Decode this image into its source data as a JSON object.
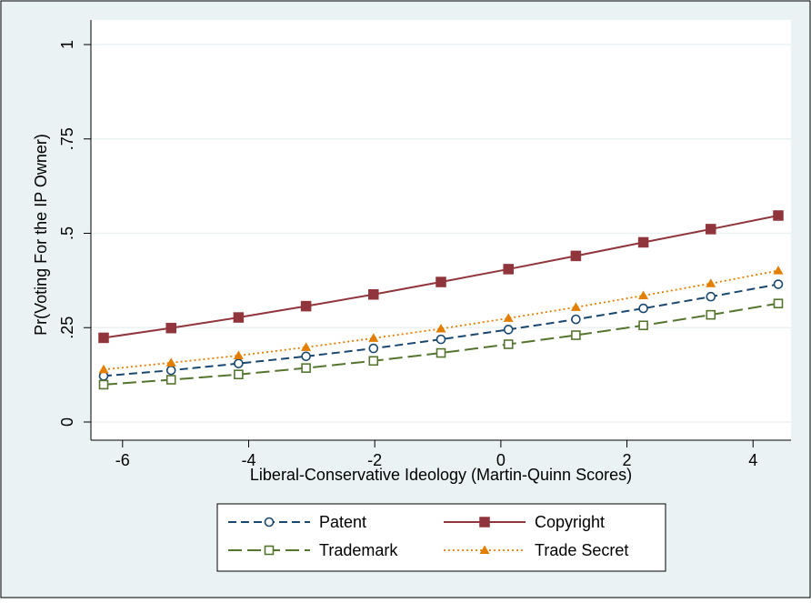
{
  "chart_data": {
    "type": "line",
    "title": "",
    "xlabel": "Liberal-Conservative Ideology (Martin-Quinn Scores)",
    "ylabel": "Pr(Voting For the IP Owner)",
    "xlim": [
      -6.3,
      4.4
    ],
    "ylim": [
      0,
      1
    ],
    "x_ticks": [
      -6,
      -4,
      -2,
      0,
      2,
      4
    ],
    "x_tick_labels": [
      "-6",
      "-4",
      "-2",
      "0",
      "2",
      "4"
    ],
    "y_ticks": [
      0,
      0.25,
      0.5,
      0.75,
      1
    ],
    "y_tick_labels": [
      "0",
      ".25",
      ".5",
      ".75",
      "1"
    ],
    "grid": true,
    "legend_position": "bottom",
    "x": [
      -6.3,
      -5.23,
      -4.16,
      -3.09,
      -2.02,
      -0.95,
      0.12,
      1.19,
      2.26,
      3.33,
      4.4
    ],
    "series": [
      {
        "name": "Patent",
        "color": "#1a476f",
        "marker": "circle-hollow",
        "line_style": "dash",
        "values": [
          0.122,
          0.137,
          0.155,
          0.174,
          0.195,
          0.219,
          0.245,
          0.272,
          0.301,
          0.332,
          0.365
        ]
      },
      {
        "name": "Copyright",
        "color": "#90353b",
        "marker": "square-filled",
        "line_style": "solid",
        "values": [
          0.223,
          0.249,
          0.277,
          0.307,
          0.338,
          0.371,
          0.405,
          0.44,
          0.476,
          0.511,
          0.547
        ]
      },
      {
        "name": "Trademark",
        "color": "#55752f",
        "marker": "square-hollow",
        "line_style": "longdash",
        "values": [
          0.099,
          0.112,
          0.126,
          0.143,
          0.162,
          0.183,
          0.206,
          0.23,
          0.256,
          0.284,
          0.314
        ]
      },
      {
        "name": "Trade Secret",
        "color": "#e37e00",
        "marker": "triangle-filled",
        "line_style": "dot",
        "values": [
          0.139,
          0.157,
          0.176,
          0.198,
          0.222,
          0.247,
          0.275,
          0.304,
          0.335,
          0.367,
          0.401
        ]
      }
    ]
  },
  "colors": {
    "outer_background": "#eaf2f3",
    "plot_background": "#ffffff",
    "grid": "#eaf2f3",
    "frame": "#000000"
  }
}
